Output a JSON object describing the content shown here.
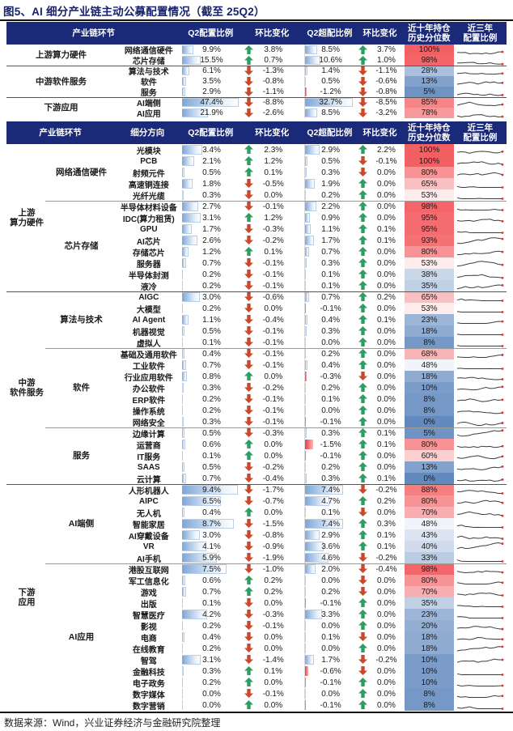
{
  "title": "图5、AI 细分产业链主动公募配置情况（截至 25Q2）",
  "footer": {
    "source": "数据来源：Wind，兴业证券经济与金融研究院整理"
  },
  "colors": {
    "header_bg": "#1b2a78",
    "title_text": "#17216e",
    "up_arrow": "#2e9d62",
    "down_arrow": "#c9492b",
    "bar_positive": "#7ea6d7",
    "bar_negative": "#ec3b40",
    "percentile_high": "#f36063",
    "percentile_low": "#638abe",
    "sparkline": "#3c3c3c",
    "sparkline_dot": "#e03030"
  },
  "chart_data": {
    "type": "table",
    "title": "图5、AI 细分产业链主动公募配置情况（截至 25Q2）",
    "summary": {
      "headers": {
        "col1": "产业链环节",
        "alloc": "Q2配置比例",
        "alloc_chg": "环比变化",
        "over": "Q2超配比例",
        "over_chg": "环比变化",
        "pct": [
          "近十年持仓",
          "历史分位数"
        ],
        "spark": [
          "近三年",
          "配置比例"
        ]
      },
      "groups": [
        {
          "label": "上游算力硬件",
          "rows": [
            {
              "name": "网络通信硬件",
              "alloc": 9.9,
              "alloc_chg": 3.8,
              "alloc_dir": "up",
              "over": 8.5,
              "over_chg": 3.7,
              "over_dir": "up",
              "pct": 100
            },
            {
              "name": "芯片存储",
              "alloc": 15.5,
              "alloc_chg": 0.7,
              "alloc_dir": "up",
              "over": 10.6,
              "over_chg": 1.0,
              "over_dir": "up",
              "pct": 98
            }
          ]
        },
        {
          "label": "中游软件服务",
          "rows": [
            {
              "name": "算法与技术",
              "alloc": 6.1,
              "alloc_chg": -1.3,
              "alloc_dir": "down",
              "over": 1.4,
              "over_chg": -1.1,
              "over_dir": "down",
              "pct": 28
            },
            {
              "name": "软件",
              "alloc": 3.5,
              "alloc_chg": -0.8,
              "alloc_dir": "down",
              "over": 0.5,
              "over_chg": -0.6,
              "over_dir": "down",
              "pct": 13
            },
            {
              "name": "服务",
              "alloc": 2.9,
              "alloc_chg": -1.1,
              "alloc_dir": "down",
              "over": -1.2,
              "over_chg": -0.8,
              "over_dir": "down",
              "pct": 5
            }
          ]
        },
        {
          "label": "下游应用",
          "rows": [
            {
              "name": "AI端侧",
              "alloc": 47.4,
              "alloc_chg": -8.8,
              "alloc_dir": "down",
              "over": 32.7,
              "over_chg": -8.5,
              "over_dir": "down",
              "pct": 85
            },
            {
              "name": "AI应用",
              "alloc": 21.9,
              "alloc_chg": -2.6,
              "alloc_dir": "down",
              "over": 8.5,
              "over_chg": -3.2,
              "over_dir": "down",
              "pct": 78
            }
          ]
        }
      ]
    },
    "detail": {
      "headers": {
        "col1": "产业链环节",
        "col2": "细分方向",
        "alloc": "Q2配置比例",
        "alloc_chg": "环比变化",
        "over": "Q2超配比例",
        "over_chg": "环比变化",
        "pct": [
          "近十年持仓",
          "历史分位数"
        ],
        "spark": [
          "近三年",
          "配置比例"
        ]
      },
      "groups": [
        {
          "label": "上游\n算力硬件",
          "subgroups": [
            {
              "label": "网络通信硬件",
              "rows": [
                {
                  "name": "光模块",
                  "alloc": 3.4,
                  "alloc_chg": 2.3,
                  "alloc_dir": "up",
                  "over": 2.9,
                  "over_chg": 2.2,
                  "over_dir": "up",
                  "pct": 100
                },
                {
                  "name": "PCB",
                  "alloc": 2.1,
                  "alloc_chg": 1.2,
                  "alloc_dir": "up",
                  "over": 0.5,
                  "over_chg": -0.1,
                  "over_dir": "down",
                  "pct": 100
                },
                {
                  "name": "射频元件",
                  "alloc": 0.5,
                  "alloc_chg": 0.1,
                  "alloc_dir": "up",
                  "over": 0.3,
                  "over_chg": 0.0,
                  "over_dir": "down",
                  "pct": 80
                },
                {
                  "name": "高速铜连接",
                  "alloc": 1.8,
                  "alloc_chg": -0.5,
                  "alloc_dir": "down",
                  "over": 1.9,
                  "over_chg": 0.0,
                  "over_dir": "up",
                  "pct": 65
                },
                {
                  "name": "光纤光缆",
                  "alloc": 0.3,
                  "alloc_chg": 0.0,
                  "alloc_dir": "down",
                  "over": 0.2,
                  "over_chg": 0.0,
                  "over_dir": "up",
                  "pct": 53
                }
              ]
            },
            {
              "label": "芯片存储",
              "rows": [
                {
                  "name": "半导体材料设备",
                  "alloc": 2.7,
                  "alloc_chg": -0.1,
                  "alloc_dir": "down",
                  "over": 2.2,
                  "over_chg": 0.0,
                  "over_dir": "up",
                  "pct": 98
                },
                {
                  "name": "IDC(算力租赁)",
                  "alloc": 3.1,
                  "alloc_chg": 1.2,
                  "alloc_dir": "up",
                  "over": 0.9,
                  "over_chg": 0.0,
                  "over_dir": "up",
                  "pct": 95
                },
                {
                  "name": "GPU",
                  "alloc": 1.7,
                  "alloc_chg": -0.3,
                  "alloc_dir": "down",
                  "over": 1.1,
                  "over_chg": 0.1,
                  "over_dir": "up",
                  "pct": 95
                },
                {
                  "name": "AI芯片",
                  "alloc": 2.6,
                  "alloc_chg": -0.2,
                  "alloc_dir": "down",
                  "over": 1.7,
                  "over_chg": 0.1,
                  "over_dir": "up",
                  "pct": 93
                },
                {
                  "name": "存储芯片",
                  "alloc": 1.2,
                  "alloc_chg": 0.1,
                  "alloc_dir": "up",
                  "over": 0.7,
                  "over_chg": 0.0,
                  "over_dir": "up",
                  "pct": 80
                },
                {
                  "name": "服务器",
                  "alloc": 0.7,
                  "alloc_chg": -0.1,
                  "alloc_dir": "down",
                  "over": 0.3,
                  "over_chg": 0.0,
                  "over_dir": "up",
                  "pct": 53
                },
                {
                  "name": "半导体封测",
                  "alloc": 0.2,
                  "alloc_chg": -0.1,
                  "alloc_dir": "down",
                  "over": 0.1,
                  "over_chg": 0.0,
                  "over_dir": "up",
                  "pct": 38
                },
                {
                  "name": "液冷",
                  "alloc": 0.2,
                  "alloc_chg": -0.1,
                  "alloc_dir": "down",
                  "over": 0.1,
                  "over_chg": 0.0,
                  "over_dir": "up",
                  "pct": 35
                }
              ]
            }
          ]
        },
        {
          "label": "中游\n软件服务",
          "subgroups": [
            {
              "label": "算法与技术",
              "rows": [
                {
                  "name": "AIGC",
                  "alloc": 3.0,
                  "alloc_chg": -0.6,
                  "alloc_dir": "down",
                  "over": 0.7,
                  "over_chg": 0.2,
                  "over_dir": "up",
                  "pct": 65
                },
                {
                  "name": "大模型",
                  "alloc": 0.2,
                  "alloc_chg": 0.0,
                  "alloc_dir": "down",
                  "over": -0.1,
                  "over_chg": 0.0,
                  "over_dir": "up",
                  "pct": 53
                },
                {
                  "name": "AI Agent",
                  "alloc": 1.1,
                  "alloc_chg": -0.4,
                  "alloc_dir": "down",
                  "over": 0.4,
                  "over_chg": 0.1,
                  "over_dir": "up",
                  "pct": 23
                },
                {
                  "name": "机器视觉",
                  "alloc": 0.5,
                  "alloc_chg": -0.1,
                  "alloc_dir": "down",
                  "over": 0.3,
                  "over_chg": 0.0,
                  "over_dir": "up",
                  "pct": 18
                },
                {
                  "name": "虚拟人",
                  "alloc": 0.1,
                  "alloc_chg": -0.1,
                  "alloc_dir": "down",
                  "over": 0.0,
                  "over_chg": 0.0,
                  "over_dir": "up",
                  "pct": 8
                }
              ]
            },
            {
              "label": "软件",
              "rows": [
                {
                  "name": "基础及通用软件",
                  "alloc": 0.4,
                  "alloc_chg": -0.1,
                  "alloc_dir": "down",
                  "over": 0.2,
                  "over_chg": 0.0,
                  "over_dir": "up",
                  "pct": 68
                },
                {
                  "name": "工业软件",
                  "alloc": 0.7,
                  "alloc_chg": -0.1,
                  "alloc_dir": "down",
                  "over": 0.4,
                  "over_chg": 0.0,
                  "over_dir": "up",
                  "pct": 48
                },
                {
                  "name": "行业应用软件",
                  "alloc": 0.8,
                  "alloc_chg": 0.0,
                  "alloc_dir": "up",
                  "over": -0.3,
                  "over_chg": 0.0,
                  "over_dir": "down",
                  "pct": 18
                },
                {
                  "name": "办公软件",
                  "alloc": 0.3,
                  "alloc_chg": -0.2,
                  "alloc_dir": "down",
                  "over": 0.2,
                  "over_chg": 0.0,
                  "over_dir": "up",
                  "pct": 10
                },
                {
                  "name": "ERP软件",
                  "alloc": 0.2,
                  "alloc_chg": -0.1,
                  "alloc_dir": "down",
                  "over": 0.1,
                  "over_chg": 0.0,
                  "over_dir": "up",
                  "pct": 8
                },
                {
                  "name": "操作系统",
                  "alloc": 0.2,
                  "alloc_chg": -0.1,
                  "alloc_dir": "down",
                  "over": 0.0,
                  "over_chg": 0.0,
                  "over_dir": "up",
                  "pct": 8
                },
                {
                  "name": "网络安全",
                  "alloc": 0.3,
                  "alloc_chg": -0.1,
                  "alloc_dir": "down",
                  "over": -0.1,
                  "over_chg": 0.0,
                  "over_dir": "up",
                  "pct": 0
                }
              ]
            },
            {
              "label": "服务",
              "rows": [
                {
                  "name": "边缘计算",
                  "alloc": 0.5,
                  "alloc_chg": -0.3,
                  "alloc_dir": "down",
                  "over": 0.3,
                  "over_chg": 0.1,
                  "over_dir": "up",
                  "pct": 5
                },
                {
                  "name": "运营商",
                  "alloc": 0.6,
                  "alloc_chg": 0.0,
                  "alloc_dir": "up",
                  "over": -1.5,
                  "over_chg": 0.1,
                  "over_dir": "up",
                  "pct": 80
                },
                {
                  "name": "IT服务",
                  "alloc": 0.1,
                  "alloc_chg": 0.0,
                  "alloc_dir": "up",
                  "over": -0.1,
                  "over_chg": 0.0,
                  "over_dir": "up",
                  "pct": 60
                },
                {
                  "name": "SAAS",
                  "alloc": 0.5,
                  "alloc_chg": -0.2,
                  "alloc_dir": "down",
                  "over": 0.2,
                  "over_chg": 0.0,
                  "over_dir": "up",
                  "pct": 13
                },
                {
                  "name": "云计算",
                  "alloc": 0.7,
                  "alloc_chg": -0.4,
                  "alloc_dir": "down",
                  "over": 0.3,
                  "over_chg": 0.1,
                  "over_dir": "up",
                  "pct": 0
                }
              ]
            }
          ]
        },
        {
          "label": "下游\n应用",
          "subgroups": [
            {
              "label": "AI端侧",
              "rows": [
                {
                  "name": "人形机器人",
                  "alloc": 9.4,
                  "alloc_chg": -1.7,
                  "alloc_dir": "down",
                  "over": 7.4,
                  "over_chg": -0.2,
                  "over_dir": "down",
                  "pct": 88
                },
                {
                  "name": "AIPC",
                  "alloc": 6.5,
                  "alloc_chg": -0.7,
                  "alloc_dir": "down",
                  "over": 4.7,
                  "over_chg": 0.2,
                  "over_dir": "up",
                  "pct": 80
                },
                {
                  "name": "无人机",
                  "alloc": 0.4,
                  "alloc_chg": 0.0,
                  "alloc_dir": "up",
                  "over": 0.1,
                  "over_chg": 0.0,
                  "over_dir": "down",
                  "pct": 70
                },
                {
                  "name": "智能家居",
                  "alloc": 8.7,
                  "alloc_chg": -1.5,
                  "alloc_dir": "down",
                  "over": 7.4,
                  "over_chg": 0.3,
                  "over_dir": "up",
                  "pct": 48
                },
                {
                  "name": "AI穿戴设备",
                  "alloc": 3.0,
                  "alloc_chg": -0.8,
                  "alloc_dir": "down",
                  "over": 2.9,
                  "over_chg": 0.1,
                  "over_dir": "up",
                  "pct": 43
                },
                {
                  "name": "VR",
                  "alloc": 4.1,
                  "alloc_chg": -0.9,
                  "alloc_dir": "down",
                  "over": 3.6,
                  "over_chg": 0.1,
                  "over_dir": "up",
                  "pct": 40
                },
                {
                  "name": "AI手机",
                  "alloc": 5.9,
                  "alloc_chg": -1.9,
                  "alloc_dir": "down",
                  "over": 4.6,
                  "over_chg": -0.2,
                  "over_dir": "down",
                  "pct": 33
                }
              ]
            },
            {
              "label": "AI应用",
              "rows": [
                {
                  "name": "港股互联网",
                  "alloc": 7.5,
                  "alloc_chg": -1.0,
                  "alloc_dir": "down",
                  "over": 2.0,
                  "over_chg": -0.4,
                  "over_dir": "down",
                  "pct": 98
                },
                {
                  "name": "军工信息化",
                  "alloc": 0.6,
                  "alloc_chg": 0.2,
                  "alloc_dir": "up",
                  "over": 0.0,
                  "over_chg": 0.0,
                  "over_dir": "down",
                  "pct": 80
                },
                {
                  "name": "游戏",
                  "alloc": 0.7,
                  "alloc_chg": 0.2,
                  "alloc_dir": "up",
                  "over": 0.2,
                  "over_chg": 0.0,
                  "over_dir": "down",
                  "pct": 70
                },
                {
                  "name": "出版",
                  "alloc": 0.1,
                  "alloc_chg": 0.0,
                  "alloc_dir": "down",
                  "over": -0.1,
                  "over_chg": 0.0,
                  "over_dir": "up",
                  "pct": 35
                },
                {
                  "name": "智慧医疗",
                  "alloc": 4.2,
                  "alloc_chg": -0.3,
                  "alloc_dir": "down",
                  "over": 3.3,
                  "over_chg": 0.0,
                  "over_dir": "up",
                  "pct": 23
                },
                {
                  "name": "影视",
                  "alloc": 0.2,
                  "alloc_chg": -0.1,
                  "alloc_dir": "down",
                  "over": 0.0,
                  "over_chg": 0.0,
                  "over_dir": "up",
                  "pct": 20
                },
                {
                  "name": "电商",
                  "alloc": 0.4,
                  "alloc_chg": 0.0,
                  "alloc_dir": "down",
                  "over": 0.1,
                  "over_chg": 0.0,
                  "over_dir": "down",
                  "pct": 18
                },
                {
                  "name": "在线教育",
                  "alloc": 0.2,
                  "alloc_chg": 0.0,
                  "alloc_dir": "down",
                  "over": 0.0,
                  "over_chg": 0.0,
                  "over_dir": "up",
                  "pct": 18
                },
                {
                  "name": "智驾",
                  "alloc": 3.1,
                  "alloc_chg": -1.4,
                  "alloc_dir": "down",
                  "over": 1.7,
                  "over_chg": -0.2,
                  "over_dir": "down",
                  "pct": 10
                },
                {
                  "name": "金融科技",
                  "alloc": 0.3,
                  "alloc_chg": 0.1,
                  "alloc_dir": "up",
                  "over": -0.6,
                  "over_chg": 0.0,
                  "over_dir": "down",
                  "pct": 10
                },
                {
                  "name": "电子政务",
                  "alloc": 0.2,
                  "alloc_chg": 0.0,
                  "alloc_dir": "up",
                  "over": -0.1,
                  "over_chg": 0.0,
                  "over_dir": "up",
                  "pct": 10
                },
                {
                  "name": "数字媒体",
                  "alloc": 0.0,
                  "alloc_chg": -0.1,
                  "alloc_dir": "down",
                  "over": 0.0,
                  "over_chg": 0.0,
                  "over_dir": "up",
                  "pct": 8
                },
                {
                  "name": "数字营销",
                  "alloc": 0.0,
                  "alloc_chg": 0.0,
                  "alloc_dir": "up",
                  "over": -0.1,
                  "over_chg": 0.0,
                  "over_dir": "up",
                  "pct": 8
                }
              ]
            }
          ]
        }
      ]
    }
  }
}
